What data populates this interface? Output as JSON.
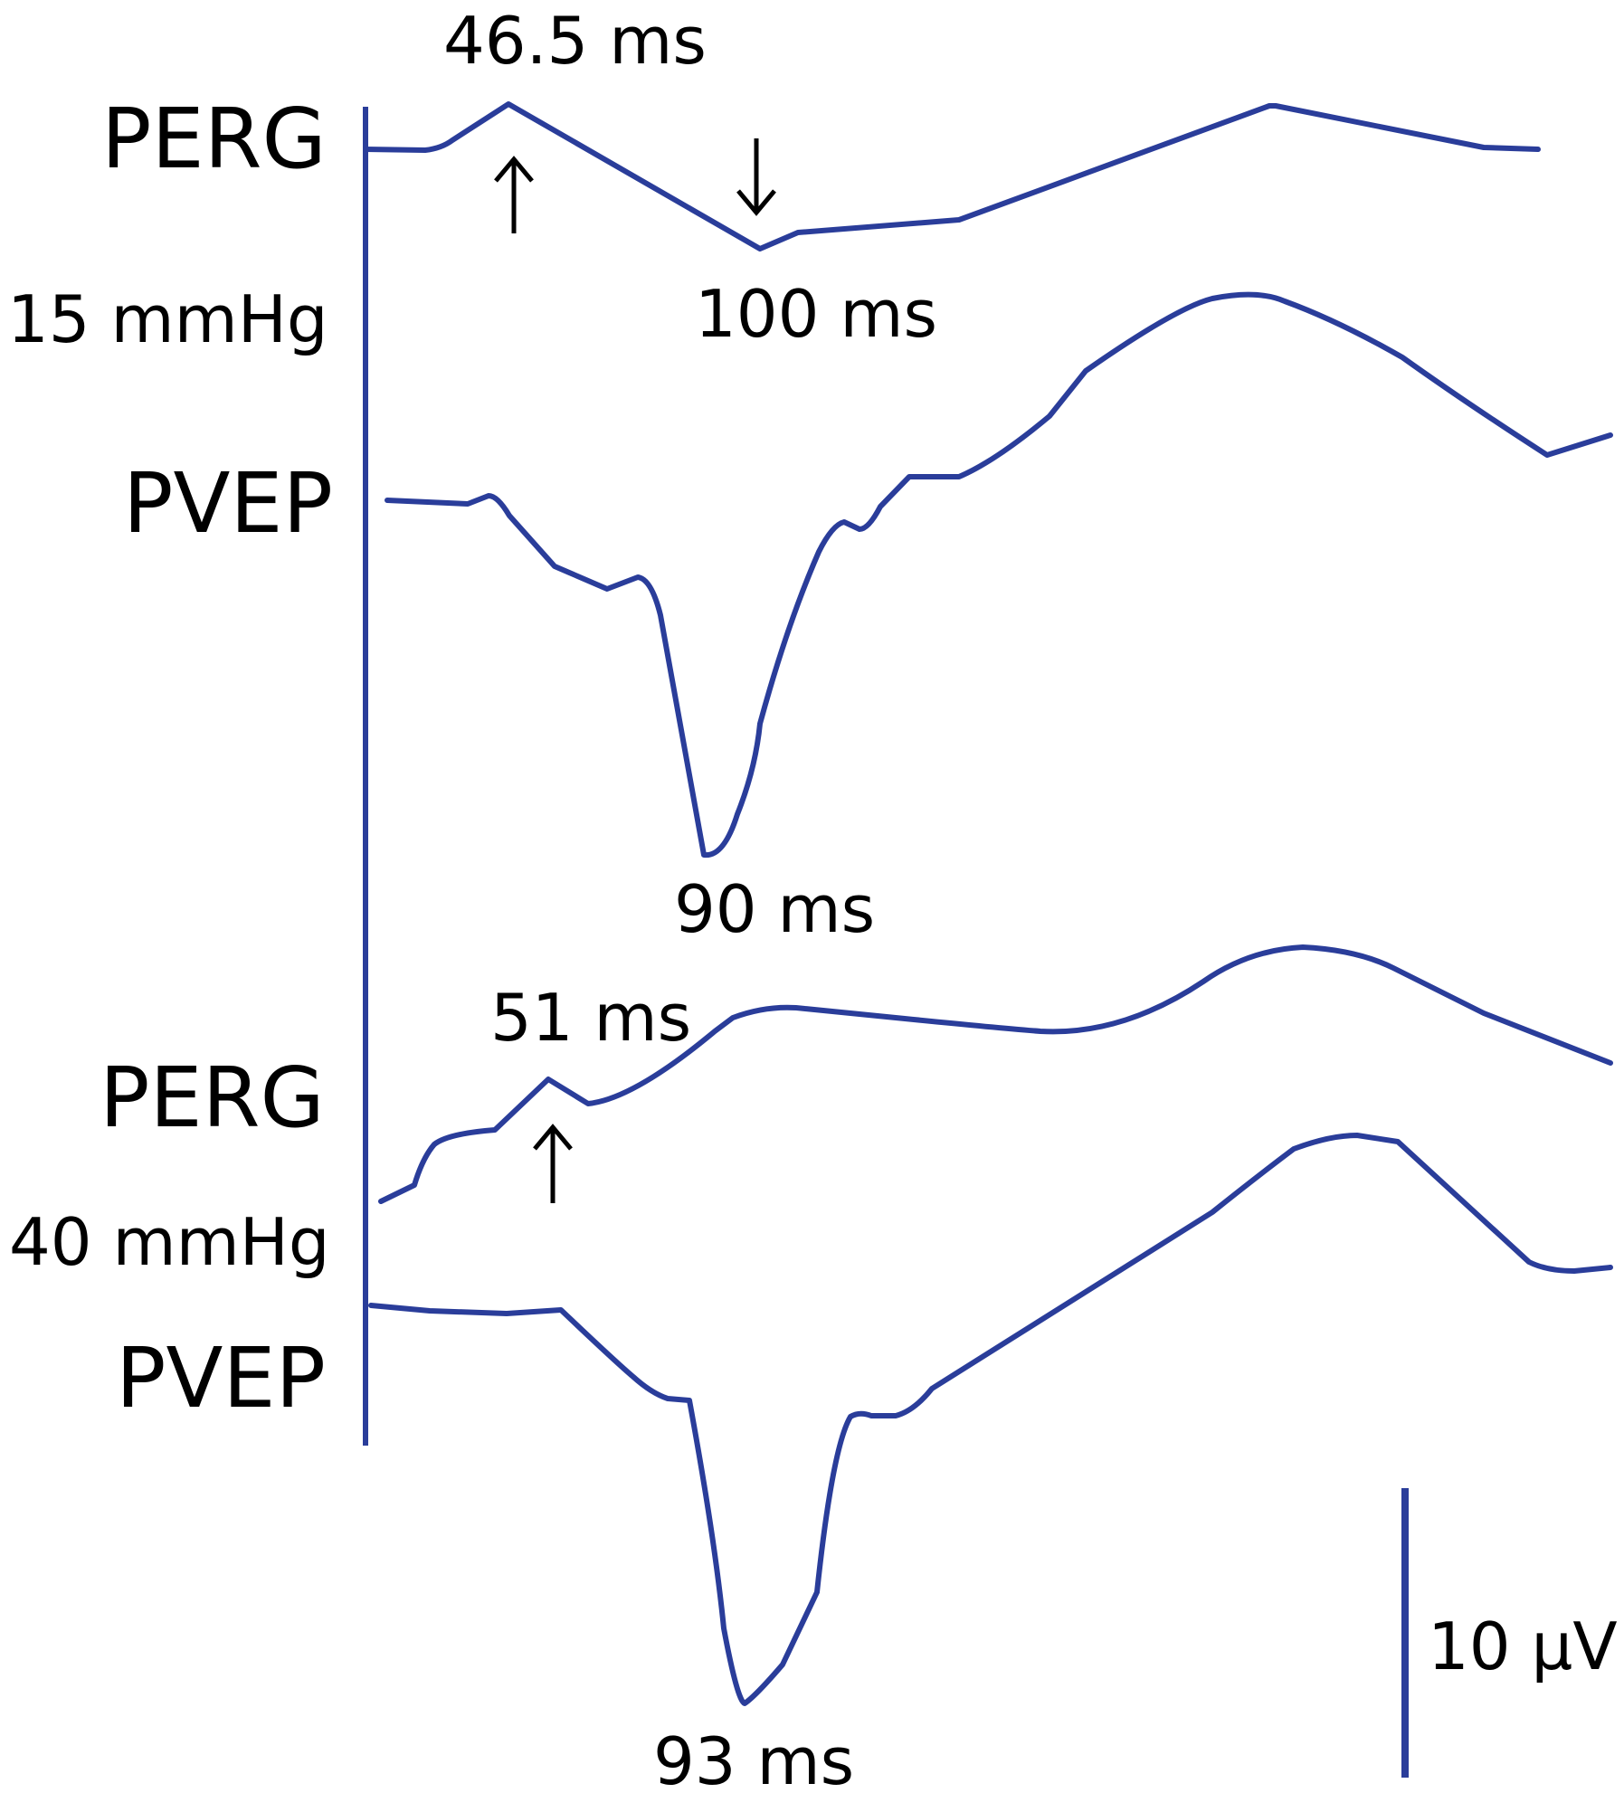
{
  "chart_data": {
    "type": "line",
    "title": "",
    "xlabel": "",
    "ylabel": "",
    "colors": {
      "trace": "#2a3d9a",
      "text": "#000000"
    },
    "scale_bar": {
      "label": "10 µV",
      "value": 10,
      "unit": "µV"
    },
    "groups": [
      {
        "pressure_label": "15 mmHg",
        "series": [
          {
            "name": "PERG",
            "annotations": [
              {
                "label": "46.5 ms",
                "latency_ms": 46.5,
                "arrow": "up",
                "arrow_icon": "up-arrow-icon"
              },
              {
                "label": "100 ms",
                "latency_ms": 100,
                "arrow": "down",
                "arrow_icon": "down-arrow-icon"
              }
            ]
          },
          {
            "name": "PVEP",
            "annotations": [
              {
                "label": "90 ms",
                "latency_ms": 90
              }
            ]
          }
        ]
      },
      {
        "pressure_label": "40 mmHg",
        "series": [
          {
            "name": "PERG",
            "annotations": [
              {
                "label": "51 ms",
                "latency_ms": 51,
                "arrow": "up",
                "arrow_icon": "up-arrow-icon"
              }
            ]
          },
          {
            "name": "PVEP",
            "annotations": [
              {
                "label": "93 ms",
                "latency_ms": 93
              }
            ]
          }
        ]
      }
    ]
  }
}
